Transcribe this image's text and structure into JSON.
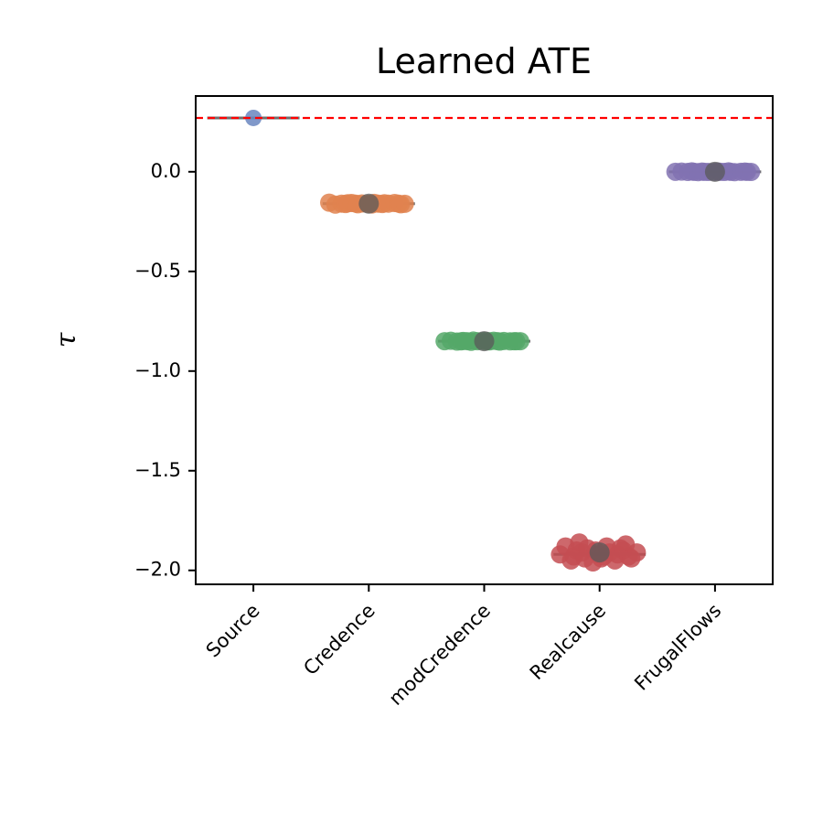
{
  "chart_data": {
    "type": "scatter",
    "title": "Learned ATE",
    "xlabel": "",
    "ylabel": "τ",
    "ylim": [
      -2.07,
      0.38
    ],
    "yticks": [
      "0.0",
      "−0.5",
      "−1.0",
      "−1.5",
      "−2.0"
    ],
    "ytick_values": [
      0.0,
      -0.5,
      -1.0,
      -1.5,
      -2.0
    ],
    "categories": [
      "Source",
      "Credence",
      "modCredence",
      "Realcause",
      "FrugalFlows"
    ],
    "reference_line": {
      "y": 0.27,
      "color": "#ff0000",
      "style": "dashed"
    },
    "series": [
      {
        "category": "Source",
        "color": "#6a86bf",
        "median": 0.27,
        "mean": 0.27,
        "values": [
          0.27
        ]
      },
      {
        "category": "Credence",
        "color": "#e1834f",
        "median": -0.16,
        "mean": -0.16,
        "values": [
          -0.155,
          -0.165,
          -0.16,
          -0.158,
          -0.162,
          -0.157,
          -0.163,
          -0.16,
          -0.159,
          -0.161,
          -0.156,
          -0.164,
          -0.16,
          -0.158,
          -0.162,
          -0.16,
          -0.157,
          -0.163,
          -0.16,
          -0.161
        ]
      },
      {
        "category": "modCredence",
        "color": "#55a868",
        "median": -0.85,
        "mean": -0.85,
        "values": [
          -0.85,
          -0.848,
          -0.852,
          -0.849,
          -0.851,
          -0.85,
          -0.847,
          -0.853,
          -0.85,
          -0.849,
          -0.851,
          -0.85,
          -0.848,
          -0.852,
          -0.85,
          -0.849,
          -0.851,
          -0.85,
          -0.85,
          -0.85
        ]
      },
      {
        "category": "Realcause",
        "color": "#c44e52",
        "median": -1.92,
        "mean": -1.91,
        "values": [
          -1.92,
          -1.88,
          -1.95,
          -1.9,
          -1.93,
          -1.86,
          -1.94,
          -1.91,
          -1.89,
          -1.96,
          -1.92,
          -1.9,
          -1.94,
          -1.88,
          -1.93,
          -1.91,
          -1.95,
          -1.89,
          -1.92,
          -1.9,
          -1.93,
          -1.87,
          -1.94,
          -1.91
        ]
      },
      {
        "category": "FrugalFlows",
        "color": "#8172b2",
        "median": 0.0,
        "mean": 0.0,
        "values": [
          0.0,
          0.001,
          -0.001,
          0.0,
          0.002,
          -0.002,
          0.0,
          0.001,
          -0.001,
          0.0,
          0.0,
          0.001,
          -0.001,
          0.0,
          0.002,
          -0.002,
          0.0,
          0.0,
          0.001,
          -0.001
        ]
      }
    ],
    "grid": false,
    "legend": "none"
  }
}
